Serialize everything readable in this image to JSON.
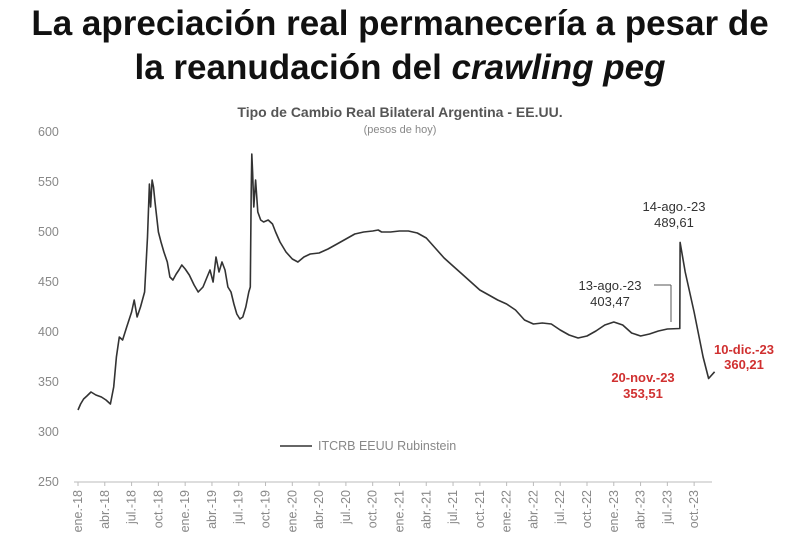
{
  "headline": {
    "line1": "La apreciación real permanecería a pesar de",
    "line2_plain": "la reanudación del ",
    "line2_italic": "crawling peg"
  },
  "colors": {
    "series": "#333333",
    "annotation_dark": "#333333",
    "annotation_red": "#d03030"
  },
  "chart_data": {
    "type": "line",
    "title": "Tipo de Cambio Real Bilateral Argentina - EE.UU.",
    "subtitle": "(pesos de hoy)",
    "ylim": [
      250,
      600
    ],
    "yticks": [
      600,
      550,
      500,
      450,
      400,
      350,
      300,
      250
    ],
    "xlim": [
      "2018-01",
      "2023-12"
    ],
    "xticks": [
      "ene.-18",
      "abr.-18",
      "jul.-18",
      "oct.-18",
      "ene.-19",
      "abr.-19",
      "jul.-19",
      "oct.-19",
      "ene.-20",
      "abr.-20",
      "jul.-20",
      "oct.-20",
      "ene.-21",
      "abr.-21",
      "jul.-21",
      "oct.-21",
      "ene.-22",
      "abr.-22",
      "jul.-22",
      "oct.-22",
      "ene.-23",
      "abr.-23",
      "jul.-23",
      "oct.-23"
    ],
    "legend": {
      "label": "ITCRB EEUU Rubinstein",
      "placement": "bottom-center"
    },
    "series": [
      {
        "name": "ITCRB EEUU Rubinstein",
        "points": [
          [
            "2018-01-01",
            322
          ],
          [
            "2018-01-10",
            328
          ],
          [
            "2018-01-20",
            333
          ],
          [
            "2018-02-01",
            336
          ],
          [
            "2018-02-15",
            340
          ],
          [
            "2018-03-01",
            337
          ],
          [
            "2018-03-20",
            335
          ],
          [
            "2018-04-05",
            332
          ],
          [
            "2018-04-20",
            328
          ],
          [
            "2018-05-01",
            345
          ],
          [
            "2018-05-10",
            375
          ],
          [
            "2018-05-20",
            395
          ],
          [
            "2018-06-01",
            392
          ],
          [
            "2018-06-15",
            405
          ],
          [
            "2018-07-01",
            420
          ],
          [
            "2018-07-10",
            432
          ],
          [
            "2018-07-20",
            415
          ],
          [
            "2018-08-01",
            425
          ],
          [
            "2018-08-15",
            440
          ],
          [
            "2018-08-25",
            495
          ],
          [
            "2018-09-01",
            548
          ],
          [
            "2018-09-05",
            525
          ],
          [
            "2018-09-10",
            552
          ],
          [
            "2018-09-15",
            545
          ],
          [
            "2018-09-20",
            530
          ],
          [
            "2018-10-01",
            500
          ],
          [
            "2018-10-10",
            490
          ],
          [
            "2018-10-20",
            480
          ],
          [
            "2018-11-01",
            470
          ],
          [
            "2018-11-10",
            455
          ],
          [
            "2018-11-20",
            452
          ],
          [
            "2018-12-01",
            458
          ],
          [
            "2018-12-10",
            462
          ],
          [
            "2018-12-20",
            467
          ],
          [
            "2019-01-01",
            463
          ],
          [
            "2019-01-15",
            457
          ],
          [
            "2019-02-01",
            447
          ],
          [
            "2019-02-15",
            440
          ],
          [
            "2019-03-01",
            445
          ],
          [
            "2019-03-15",
            455
          ],
          [
            "2019-03-25",
            462
          ],
          [
            "2019-04-05",
            450
          ],
          [
            "2019-04-15",
            475
          ],
          [
            "2019-04-25",
            460
          ],
          [
            "2019-05-05",
            470
          ],
          [
            "2019-05-15",
            462
          ],
          [
            "2019-05-25",
            445
          ],
          [
            "2019-06-05",
            440
          ],
          [
            "2019-06-15",
            428
          ],
          [
            "2019-06-25",
            418
          ],
          [
            "2019-07-05",
            413
          ],
          [
            "2019-07-15",
            415
          ],
          [
            "2019-07-25",
            425
          ],
          [
            "2019-08-05",
            440
          ],
          [
            "2019-08-10",
            445
          ],
          [
            "2019-08-13",
            540
          ],
          [
            "2019-08-15",
            578
          ],
          [
            "2019-08-18",
            560
          ],
          [
            "2019-08-22",
            525
          ],
          [
            "2019-08-28",
            552
          ],
          [
            "2019-09-05",
            520
          ],
          [
            "2019-09-15",
            512
          ],
          [
            "2019-09-25",
            510
          ],
          [
            "2019-10-10",
            512
          ],
          [
            "2019-10-25",
            508
          ],
          [
            "2019-11-05",
            500
          ],
          [
            "2019-11-20",
            490
          ],
          [
            "2019-12-10",
            480
          ],
          [
            "2020-01-01",
            473
          ],
          [
            "2020-01-20",
            470
          ],
          [
            "2020-02-10",
            475
          ],
          [
            "2020-03-01",
            478
          ],
          [
            "2020-04-01",
            479
          ],
          [
            "2020-05-01",
            483
          ],
          [
            "2020-06-01",
            488
          ],
          [
            "2020-07-01",
            493
          ],
          [
            "2020-08-01",
            498
          ],
          [
            "2020-09-01",
            500
          ],
          [
            "2020-10-01",
            501
          ],
          [
            "2020-10-20",
            502
          ],
          [
            "2020-11-01",
            500
          ],
          [
            "2020-12-01",
            500
          ],
          [
            "2021-01-01",
            501
          ],
          [
            "2021-02-01",
            501
          ],
          [
            "2021-03-01",
            499
          ],
          [
            "2021-04-01",
            494
          ],
          [
            "2021-05-01",
            484
          ],
          [
            "2021-06-01",
            474
          ],
          [
            "2021-07-01",
            466
          ],
          [
            "2021-08-01",
            458
          ],
          [
            "2021-09-01",
            450
          ],
          [
            "2021-10-01",
            442
          ],
          [
            "2021-11-01",
            437
          ],
          [
            "2021-12-01",
            432
          ],
          [
            "2022-01-01",
            428
          ],
          [
            "2022-02-01",
            422
          ],
          [
            "2022-03-01",
            412
          ],
          [
            "2022-04-01",
            408
          ],
          [
            "2022-05-01",
            409
          ],
          [
            "2022-06-01",
            408
          ],
          [
            "2022-07-01",
            402
          ],
          [
            "2022-08-01",
            397
          ],
          [
            "2022-09-01",
            394
          ],
          [
            "2022-10-01",
            396
          ],
          [
            "2022-11-01",
            401
          ],
          [
            "2022-12-01",
            407
          ],
          [
            "2023-01-01",
            410
          ],
          [
            "2023-02-01",
            407
          ],
          [
            "2023-03-01",
            399
          ],
          [
            "2023-04-01",
            396
          ],
          [
            "2023-05-01",
            398
          ],
          [
            "2023-06-01",
            401
          ],
          [
            "2023-07-01",
            403
          ],
          [
            "2023-08-13",
            403.47
          ],
          [
            "2023-08-14",
            489.61
          ],
          [
            "2023-09-01",
            460
          ],
          [
            "2023-10-01",
            420
          ],
          [
            "2023-11-01",
            375
          ],
          [
            "2023-11-20",
            353.51
          ],
          [
            "2023-12-10",
            360.21
          ]
        ]
      }
    ],
    "annotations": [
      {
        "date": "2023-08-14",
        "line1": "14-ago.-23",
        "line2": "489,61",
        "color": "annotation_dark"
      },
      {
        "date": "2023-08-13",
        "line1": "13-ago.-23",
        "line2": "403,47",
        "color": "annotation_dark"
      },
      {
        "date": "2023-12-10",
        "line1": "10-dic.-23",
        "line2": "360,21",
        "color": "annotation_red"
      },
      {
        "date": "2023-11-20",
        "line1": "20-nov.-23",
        "line2": "353,51",
        "color": "annotation_red"
      }
    ]
  }
}
